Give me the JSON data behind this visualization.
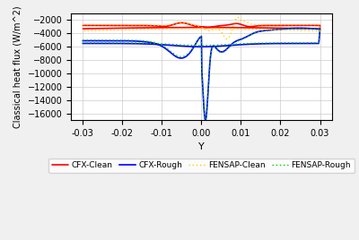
{
  "title": "",
  "xlabel": "Y",
  "ylabel": "Classical heat flux (W/m^2)",
  "xlim": [
    -0.033,
    0.033
  ],
  "ylim": [
    -17000,
    -1000
  ],
  "yticks": [
    -16000,
    -14000,
    -12000,
    -10000,
    -8000,
    -6000,
    -4000,
    -2000
  ],
  "xticks": [
    -0.03,
    -0.02,
    -0.01,
    0,
    0.01,
    0.02,
    0.03
  ],
  "background_color": "#f0f0f0",
  "plot_bg_color": "#ffffff",
  "grid_color": "#cccccc",
  "colors": {
    "CFX-Clean": "#ff0000",
    "CFX-Rough": "#0000ff",
    "FENSAP-Clean": "#ffcc00",
    "FENSAP-Rough": "#00cc00"
  },
  "legend": [
    "CFX-Clean",
    "CFX-Rough",
    "FENSAP-Clean",
    "FENSAP-Rough"
  ]
}
